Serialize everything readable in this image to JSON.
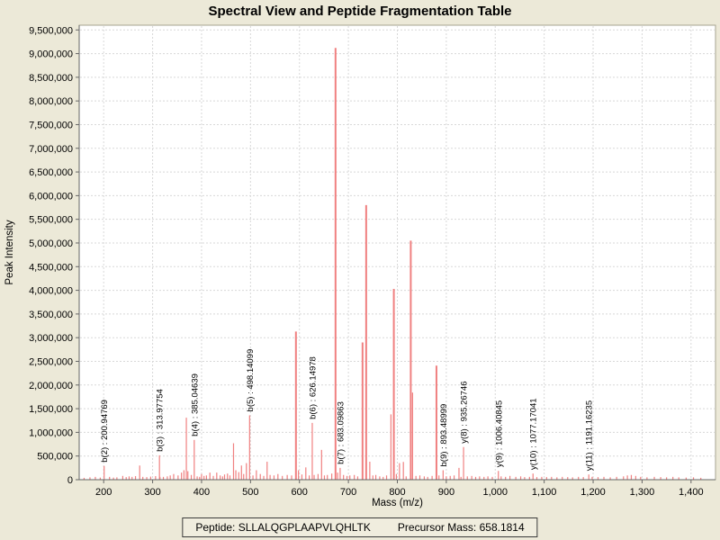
{
  "title": "Spectral View and Peptide Fragmentation Table",
  "footer": {
    "peptide": "Peptide: SLLALQGPLAAPVLQHLTK",
    "precursor": "Precursor Mass: 658.1814"
  },
  "chart_data": {
    "type": "bar",
    "title": "Spectral View and Peptide Fragmentation Table",
    "xlabel": "Mass (m/z)",
    "ylabel": "Peak Intensity",
    "xlim": [
      150,
      1450
    ],
    "ylim": [
      0,
      9600000
    ],
    "x_ticks": [
      200,
      300,
      400,
      500,
      600,
      700,
      800,
      900,
      1000,
      1100,
      1200,
      1300,
      1400
    ],
    "y_ticks": [
      0,
      500000,
      1000000,
      1500000,
      2000000,
      2500000,
      3000000,
      3500000,
      4000000,
      4500000,
      5000000,
      5500000,
      6000000,
      6500000,
      7000000,
      7500000,
      8000000,
      8500000,
      9000000,
      9500000
    ],
    "grid": true,
    "legend": "none",
    "colors": {
      "peak": "#F08080",
      "grid": "#D8D8D8",
      "axis": "#666666",
      "border": "#A6A390",
      "plot_bg": "#FFFFFF",
      "page_bg": "#ECE9D8",
      "text": "#000000"
    },
    "annotations": [
      {
        "label": "b(2) : 200.94769",
        "mz": 200.94769,
        "intensity": 290000
      },
      {
        "label": "b(3) : 313.97754",
        "mz": 313.97754,
        "intensity": 515000
      },
      {
        "label": "b(4) : 385.04639",
        "mz": 385.04639,
        "intensity": 840000
      },
      {
        "label": "b(5) : 498.14099",
        "mz": 498.14099,
        "intensity": 1360000
      },
      {
        "label": "b(6) : 626.14978",
        "mz": 626.14978,
        "intensity": 1200000
      },
      {
        "label": "b(7) : 683.09863",
        "mz": 683.09863,
        "intensity": 250000
      },
      {
        "label": "b(9) : 893.48999",
        "mz": 893.48999,
        "intensity": 200000
      },
      {
        "label": "y(8) : 935.26746",
        "mz": 935.26746,
        "intensity": 690000
      },
      {
        "label": "y(9) : 1006.40845",
        "mz": 1006.40845,
        "intensity": 185000
      },
      {
        "label": "y(10) : 1077.17041",
        "mz": 1077.17041,
        "intensity": 130000
      },
      {
        "label": "y(11) : 1191.16235",
        "mz": 1191.16235,
        "intensity": 110000
      }
    ],
    "peaks": [
      [
        160,
        40000
      ],
      [
        172,
        50000
      ],
      [
        183,
        60000
      ],
      [
        193,
        45000
      ],
      [
        212,
        60000
      ],
      [
        220,
        45000
      ],
      [
        227,
        50000
      ],
      [
        239,
        80000
      ],
      [
        246,
        55000
      ],
      [
        252,
        70000
      ],
      [
        258,
        60000
      ],
      [
        265,
        75000
      ],
      [
        273.6,
        300000
      ],
      [
        280,
        60000
      ],
      [
        288,
        55000
      ],
      [
        296,
        65000
      ],
      [
        306,
        75000
      ],
      [
        315,
        60000
      ],
      [
        322,
        60000
      ],
      [
        330,
        70000
      ],
      [
        336,
        90000
      ],
      [
        343,
        120000
      ],
      [
        352,
        90000
      ],
      [
        359,
        150000
      ],
      [
        364,
        200000
      ],
      [
        368.9,
        1310000
      ],
      [
        372,
        180000
      ],
      [
        379,
        100000
      ],
      [
        391,
        70000
      ],
      [
        396,
        60000
      ],
      [
        400,
        120000
      ],
      [
        405,
        80000
      ],
      [
        410,
        90000
      ],
      [
        417,
        150000
      ],
      [
        424,
        80000
      ],
      [
        431,
        150000
      ],
      [
        438,
        90000
      ],
      [
        443,
        70000
      ],
      [
        447,
        110000
      ],
      [
        453,
        130000
      ],
      [
        458,
        90000
      ],
      [
        465.3,
        770000
      ],
      [
        470,
        200000
      ],
      [
        476,
        160000
      ],
      [
        481.5,
        300000
      ],
      [
        486,
        120000
      ],
      [
        491.6,
        350000
      ],
      [
        505,
        90000
      ],
      [
        512,
        200000
      ],
      [
        520,
        120000
      ],
      [
        527,
        80000
      ],
      [
        533.9,
        380000
      ],
      [
        540,
        100000
      ],
      [
        548,
        90000
      ],
      [
        556,
        120000
      ],
      [
        565,
        80000
      ],
      [
        575,
        100000
      ],
      [
        584,
        90000
      ],
      [
        592.8,
        3130000
      ],
      [
        598,
        200000
      ],
      [
        605,
        110000
      ],
      [
        613,
        260000
      ],
      [
        620,
        90000
      ],
      [
        630,
        100000
      ],
      [
        638,
        120000
      ],
      [
        645.2,
        630000
      ],
      [
        651,
        90000
      ],
      [
        657,
        100000
      ],
      [
        666,
        130000
      ],
      [
        673.7,
        9120000
      ],
      [
        678,
        150000
      ],
      [
        690,
        100000
      ],
      [
        697,
        80000
      ],
      [
        703,
        90000
      ],
      [
        712,
        100000
      ],
      [
        719,
        70000
      ],
      [
        728.9,
        2900000
      ],
      [
        736.3,
        5800000
      ],
      [
        743.7,
        380000
      ],
      [
        750,
        90000
      ],
      [
        756,
        100000
      ],
      [
        764,
        70000
      ],
      [
        771,
        60000
      ],
      [
        778,
        90000
      ],
      [
        786.9,
        1380000
      ],
      [
        792.8,
        4030000
      ],
      [
        798,
        120000
      ],
      [
        804.4,
        350000
      ],
      [
        812.3,
        375000
      ],
      [
        818,
        70000
      ],
      [
        827.4,
        5050000
      ],
      [
        831.1,
        1840000
      ],
      [
        838,
        80000
      ],
      [
        846,
        90000
      ],
      [
        855,
        70000
      ],
      [
        862,
        60000
      ],
      [
        871,
        80000
      ],
      [
        879.9,
        2410000
      ],
      [
        885,
        90000
      ],
      [
        900,
        70000
      ],
      [
        908,
        80000
      ],
      [
        916,
        90000
      ],
      [
        925.9,
        250000
      ],
      [
        930,
        60000
      ],
      [
        943,
        70000
      ],
      [
        952,
        80000
      ],
      [
        960,
        60000
      ],
      [
        968,
        70000
      ],
      [
        977,
        60000
      ],
      [
        985,
        70000
      ],
      [
        994,
        60000
      ],
      [
        1012,
        70000
      ],
      [
        1021,
        60000
      ],
      [
        1030,
        80000
      ],
      [
        1042,
        60000
      ],
      [
        1052,
        70000
      ],
      [
        1060,
        55000
      ],
      [
        1070,
        60000
      ],
      [
        1085,
        55000
      ],
      [
        1095,
        60000
      ],
      [
        1105,
        55000
      ],
      [
        1115,
        60000
      ],
      [
        1126,
        50000
      ],
      [
        1137,
        60000
      ],
      [
        1148,
        55000
      ],
      [
        1158,
        50000
      ],
      [
        1170,
        60000
      ],
      [
        1180,
        55000
      ],
      [
        1198,
        60000
      ],
      [
        1210,
        55000
      ],
      [
        1222,
        60000
      ],
      [
        1235,
        50000
      ],
      [
        1248,
        60000
      ],
      [
        1262,
        70000
      ],
      [
        1270,
        90000
      ],
      [
        1278,
        100000
      ],
      [
        1287,
        80000
      ],
      [
        1297,
        60000
      ],
      [
        1310,
        50000
      ],
      [
        1325,
        60000
      ],
      [
        1338,
        55000
      ],
      [
        1350,
        50000
      ],
      [
        1363,
        60000
      ],
      [
        1375,
        50000
      ],
      [
        1390,
        45000
      ],
      [
        1405,
        50000
      ],
      [
        1420,
        40000
      ]
    ]
  }
}
